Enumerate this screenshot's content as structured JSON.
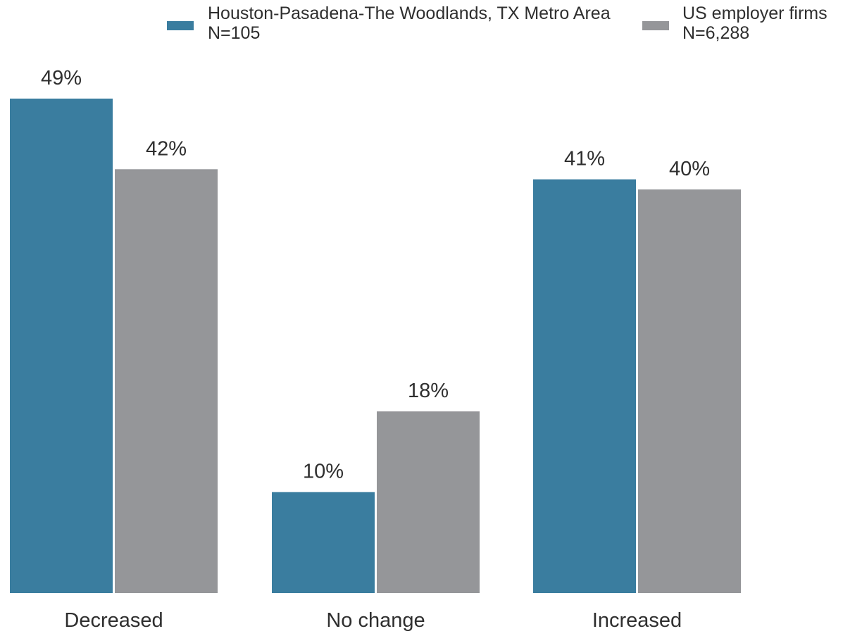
{
  "legend": [
    {
      "name": "Houston-Pasadena-The Woodlands, TX Metro Area",
      "note": "N=105",
      "color": "#3a7d9f"
    },
    {
      "name": "US employer firms",
      "note": "N=6,288",
      "color": "#959699"
    }
  ],
  "chart_data": {
    "type": "bar",
    "categories": [
      "Decreased",
      "No change",
      "Increased"
    ],
    "series": [
      {
        "name": "Houston-Pasadena-The Woodlands, TX Metro Area",
        "values": [
          49,
          10,
          41
        ],
        "labels": [
          "49%",
          "10%",
          "41%"
        ]
      },
      {
        "name": "US employer firms",
        "values": [
          42,
          18,
          40
        ],
        "labels": [
          "42%",
          "18%",
          "40%"
        ]
      }
    ],
    "ylim": [
      0,
      49
    ],
    "grid": false,
    "legend_position": "top-right"
  }
}
